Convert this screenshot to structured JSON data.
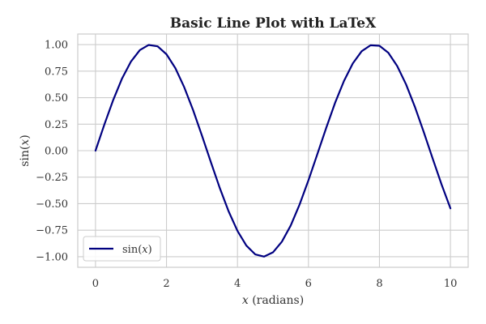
{
  "chart_data": {
    "type": "line",
    "title": "Basic Line Plot with LaTeX",
    "xlabel_var": "x",
    "xlabel_rest": " (radians)",
    "ylabel_fn": "sin(",
    "ylabel_var": "x",
    "ylabel_close": ")",
    "xlim": [
      -0.5,
      10.5
    ],
    "ylim": [
      -1.1,
      1.1
    ],
    "xticks": [
      0,
      2,
      4,
      6,
      8,
      10
    ],
    "xtick_labels": [
      "0",
      "2",
      "4",
      "6",
      "8",
      "10"
    ],
    "yticks": [
      1.0,
      0.75,
      0.5,
      0.25,
      0.0,
      -0.25,
      -0.5,
      -0.75,
      -1.0
    ],
    "ytick_labels": [
      "1.00",
      "0.75",
      "0.50",
      "0.25",
      "0.00",
      "−0.25",
      "−0.50",
      "−0.75",
      "−1.00"
    ],
    "grid": true,
    "legend_position": "lower-left",
    "series": [
      {
        "name_fn": "sin(",
        "name_var": "x",
        "name_close": ")",
        "color": "#000080",
        "x": [
          0,
          0.25,
          0.5,
          0.75,
          1,
          1.25,
          1.5,
          1.75,
          2,
          2.25,
          2.5,
          2.75,
          3,
          3.25,
          3.5,
          3.75,
          4,
          4.25,
          4.5,
          4.75,
          5,
          5.25,
          5.5,
          5.75,
          6,
          6.25,
          6.5,
          6.75,
          7,
          7.25,
          7.5,
          7.75,
          8,
          8.25,
          8.5,
          8.75,
          9,
          9.25,
          9.5,
          9.75,
          10
        ],
        "y": [
          0.0,
          0.247,
          0.479,
          0.682,
          0.841,
          0.949,
          0.997,
          0.984,
          0.909,
          0.778,
          0.598,
          0.382,
          0.141,
          -0.108,
          -0.351,
          -0.572,
          -0.757,
          -0.895,
          -0.978,
          -0.999,
          -0.959,
          -0.859,
          -0.706,
          -0.508,
          -0.279,
          -0.033,
          0.215,
          0.451,
          0.657,
          0.823,
          0.938,
          0.994,
          0.989,
          0.923,
          0.798,
          0.625,
          0.412,
          0.174,
          -0.075,
          -0.319,
          -0.544
        ]
      }
    ]
  }
}
